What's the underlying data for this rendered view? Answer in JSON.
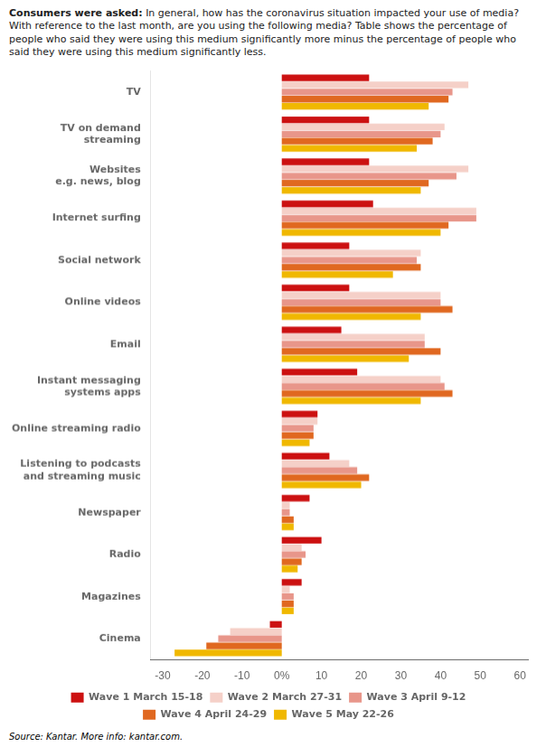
{
  "chart_data": {
    "type": "bar",
    "orientation": "horizontal",
    "title": "Consumers were asked:",
    "subtitle": "In general, how has the coronavirus situation impacted your use of media? With reference to the last month, are you using the following media? Table shows the percentage of people who said they were using this medium significantly more minus the percentage of people who said they were using this medium significantly less.",
    "annotations": [
      "Source: Kantar. More info: kantar.com."
    ],
    "categories": [
      "TV",
      "TV on demand\nstreaming",
      "Websites\ne.g. news, blog",
      "Internet surfing",
      "Social network",
      "Online videos",
      "Email",
      "Instant messaging\nsystems apps",
      "Online streaming radio",
      "Listening to podcasts\nand streaming music",
      "Newspaper",
      "Radio",
      "Magazines",
      "Cinema"
    ],
    "series": [
      {
        "name": "Wave 1 March 15-18",
        "color": "#cc1111",
        "values": [
          22,
          22,
          22,
          23,
          17,
          17,
          15,
          19,
          9,
          12,
          7,
          10,
          5,
          -3
        ]
      },
      {
        "name": "Wave 2 March 27-31",
        "color": "#f5d0c8",
        "values": [
          47,
          41,
          47,
          49,
          35,
          40,
          36,
          40,
          9,
          17,
          2,
          5,
          2,
          -13
        ]
      },
      {
        "name": "Wave 3 April 9-12",
        "color": "#e8968a",
        "values": [
          43,
          40,
          44,
          49,
          34,
          40,
          36,
          41,
          8,
          19,
          2,
          6,
          3,
          -16
        ]
      },
      {
        "name": "Wave 4 April 24-29",
        "color": "#e06820",
        "values": [
          42,
          38,
          37,
          42,
          35,
          43,
          40,
          43,
          8,
          22,
          3,
          5,
          3,
          -19
        ]
      },
      {
        "name": "Wave 5 May 22-26",
        "color": "#f0b800",
        "values": [
          37,
          34,
          35,
          40,
          28,
          35,
          32,
          35,
          7,
          20,
          3,
          4,
          3,
          -27
        ]
      }
    ],
    "xlim": [
      -33,
      62
    ],
    "xticks": [
      -30,
      -20,
      -10,
      {
        "value": 0,
        "label": "0%"
      },
      10,
      20,
      30,
      40,
      50,
      60
    ],
    "grid": false,
    "legend": "bottom"
  }
}
